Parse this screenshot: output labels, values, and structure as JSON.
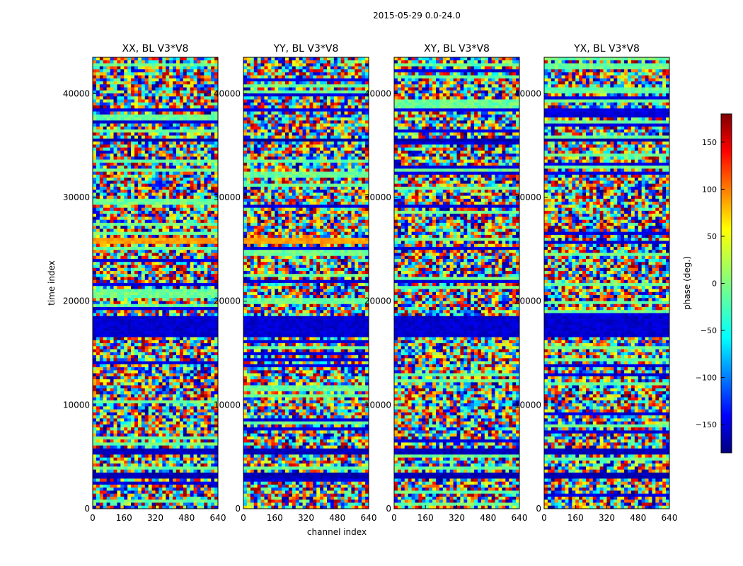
{
  "chart_data": {
    "type": "heatmap",
    "suptitle": "2015-05-29 0.0-24.0",
    "panels": [
      {
        "title": "XX, BL V3*V8"
      },
      {
        "title": "YY, BL V3*V8"
      },
      {
        "title": "XY, BL V3*V8"
      },
      {
        "title": "YX, BL V3*V8"
      }
    ],
    "xlabel": "channel index",
    "ylabel": "time index",
    "xlim": [
      0,
      640
    ],
    "ylim": [
      0,
      43500
    ],
    "x_ticks": [
      "0",
      "160",
      "320",
      "480",
      "640"
    ],
    "y_ticks": [
      "0",
      "10000",
      "20000",
      "30000",
      "40000"
    ],
    "colorbar": {
      "label": "phase (deg.)",
      "range": [
        -180,
        180
      ],
      "ticks": [
        "150",
        "100",
        "50",
        "0",
        "−50",
        "−100",
        "−150"
      ],
      "colormap": "jet"
    }
  }
}
